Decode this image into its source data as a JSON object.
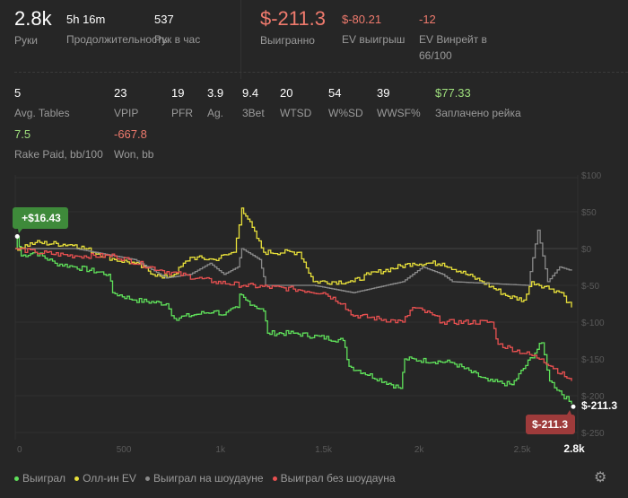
{
  "summary": [
    {
      "value": "2.8k",
      "label": "Руки"
    },
    {
      "value": "5h 16m",
      "label": "Продолжительность"
    },
    {
      "value": "537",
      "label": "Рук в час"
    },
    {
      "value": "$-211.3",
      "label": "Выигранно"
    },
    {
      "value": "$-80.21",
      "label": "EV выигрыш"
    },
    {
      "value": "-12",
      "label": "EV Винрейт в 66/100"
    }
  ],
  "stats": [
    {
      "value": "5",
      "label": "Avg. Tables"
    },
    {
      "value": "23",
      "label": "VPIP"
    },
    {
      "value": "19",
      "label": "PFR"
    },
    {
      "value": "3.9",
      "label": "Ag."
    },
    {
      "value": "9.4",
      "label": "3Bet"
    },
    {
      "value": "20",
      "label": "WTSD"
    },
    {
      "value": "54",
      "label": "W%SD"
    },
    {
      "value": "39",
      "label": "WWSF%"
    },
    {
      "value": "$77.33",
      "label": "Заплачено рейка"
    },
    {
      "value": "7.5",
      "label": "Rake Paid, bb/100"
    },
    {
      "value": "-667.8",
      "label": "Won, bb"
    }
  ],
  "chart_data": {
    "type": "line",
    "xlabel": "",
    "ylabel": "",
    "xlim": [
      0,
      2800
    ],
    "ylim": [
      -250,
      100
    ],
    "x_ticks": [
      "0",
      "500",
      "1k",
      "1.5k",
      "2k",
      "2.5k",
      "2.8k"
    ],
    "y_ticks": [
      "$100",
      "$50",
      "$0",
      "$-50",
      "$-100",
      "$-150",
      "$-200",
      "$-250"
    ],
    "start_label": "+$16.43",
    "end_label": "$-211.3",
    "end_value_label": "$-211.3",
    "series": [
      {
        "name": "Выиграл",
        "color": "#5fe05a",
        "points": [
          [
            0,
            0
          ],
          [
            10,
            16
          ],
          [
            30,
            -10
          ],
          [
            100,
            -5
          ],
          [
            200,
            -20
          ],
          [
            300,
            -25
          ],
          [
            470,
            -35
          ],
          [
            490,
            -60
          ],
          [
            600,
            -70
          ],
          [
            760,
            -75
          ],
          [
            800,
            -95
          ],
          [
            900,
            -90
          ],
          [
            1000,
            -85
          ],
          [
            1050,
            -90
          ],
          [
            1120,
            -80
          ],
          [
            1130,
            -62
          ],
          [
            1160,
            -70
          ],
          [
            1250,
            -85
          ],
          [
            1270,
            -115
          ],
          [
            1400,
            -115
          ],
          [
            1650,
            -125
          ],
          [
            1680,
            -160
          ],
          [
            1940,
            -190
          ],
          [
            1960,
            -150
          ],
          [
            2200,
            -155
          ],
          [
            2380,
            -180
          ],
          [
            2500,
            -185
          ],
          [
            2650,
            -128
          ],
          [
            2690,
            -180
          ],
          [
            2800,
            -211.3
          ]
        ]
      },
      {
        "name": "Олл-ин EV",
        "color": "#e8e03a",
        "points": [
          [
            0,
            0
          ],
          [
            100,
            8
          ],
          [
            300,
            5
          ],
          [
            500,
            -15
          ],
          [
            600,
            -20
          ],
          [
            740,
            -40
          ],
          [
            800,
            -35
          ],
          [
            880,
            -12
          ],
          [
            1000,
            -15
          ],
          [
            1100,
            -5
          ],
          [
            1140,
            55
          ],
          [
            1170,
            40
          ],
          [
            1250,
            -5
          ],
          [
            1430,
            -5
          ],
          [
            1500,
            -45
          ],
          [
            1700,
            -45
          ],
          [
            1780,
            -35
          ],
          [
            2000,
            -20
          ],
          [
            2150,
            -20
          ],
          [
            2350,
            -45
          ],
          [
            2480,
            -65
          ],
          [
            2560,
            -70
          ],
          [
            2600,
            -45
          ],
          [
            2700,
            -55
          ],
          [
            2750,
            -60
          ],
          [
            2800,
            -80
          ]
        ]
      },
      {
        "name": "Выиграл на шоудауне",
        "color": "#8a8a8a",
        "points": [
          [
            0,
            0
          ],
          [
            100,
            0
          ],
          [
            300,
            0
          ],
          [
            500,
            -10
          ],
          [
            600,
            -15
          ],
          [
            760,
            -40
          ],
          [
            880,
            -35
          ],
          [
            980,
            -20
          ],
          [
            1050,
            -35
          ],
          [
            1120,
            -25
          ],
          [
            1140,
            0
          ],
          [
            1230,
            -15
          ],
          [
            1260,
            -50
          ],
          [
            1500,
            -50
          ],
          [
            1700,
            -60
          ],
          [
            1950,
            -45
          ],
          [
            2050,
            -25
          ],
          [
            2150,
            -35
          ],
          [
            2200,
            -45
          ],
          [
            2580,
            -50
          ],
          [
            2630,
            25
          ],
          [
            2680,
            -45
          ],
          [
            2740,
            -25
          ],
          [
            2800,
            -30
          ]
        ]
      },
      {
        "name": "Выиграл без шоудауна",
        "color": "#e85050",
        "points": [
          [
            0,
            0
          ],
          [
            100,
            -5
          ],
          [
            300,
            -10
          ],
          [
            500,
            -10
          ],
          [
            740,
            -30
          ],
          [
            1000,
            -45
          ],
          [
            1150,
            -50
          ],
          [
            1400,
            -55
          ],
          [
            1550,
            -60
          ],
          [
            1650,
            -75
          ],
          [
            1690,
            -90
          ],
          [
            1950,
            -100
          ],
          [
            2000,
            -80
          ],
          [
            2100,
            -90
          ],
          [
            2150,
            -100
          ],
          [
            2400,
            -100
          ],
          [
            2430,
            -130
          ],
          [
            2650,
            -150
          ],
          [
            2800,
            -180
          ]
        ]
      }
    ]
  }
}
